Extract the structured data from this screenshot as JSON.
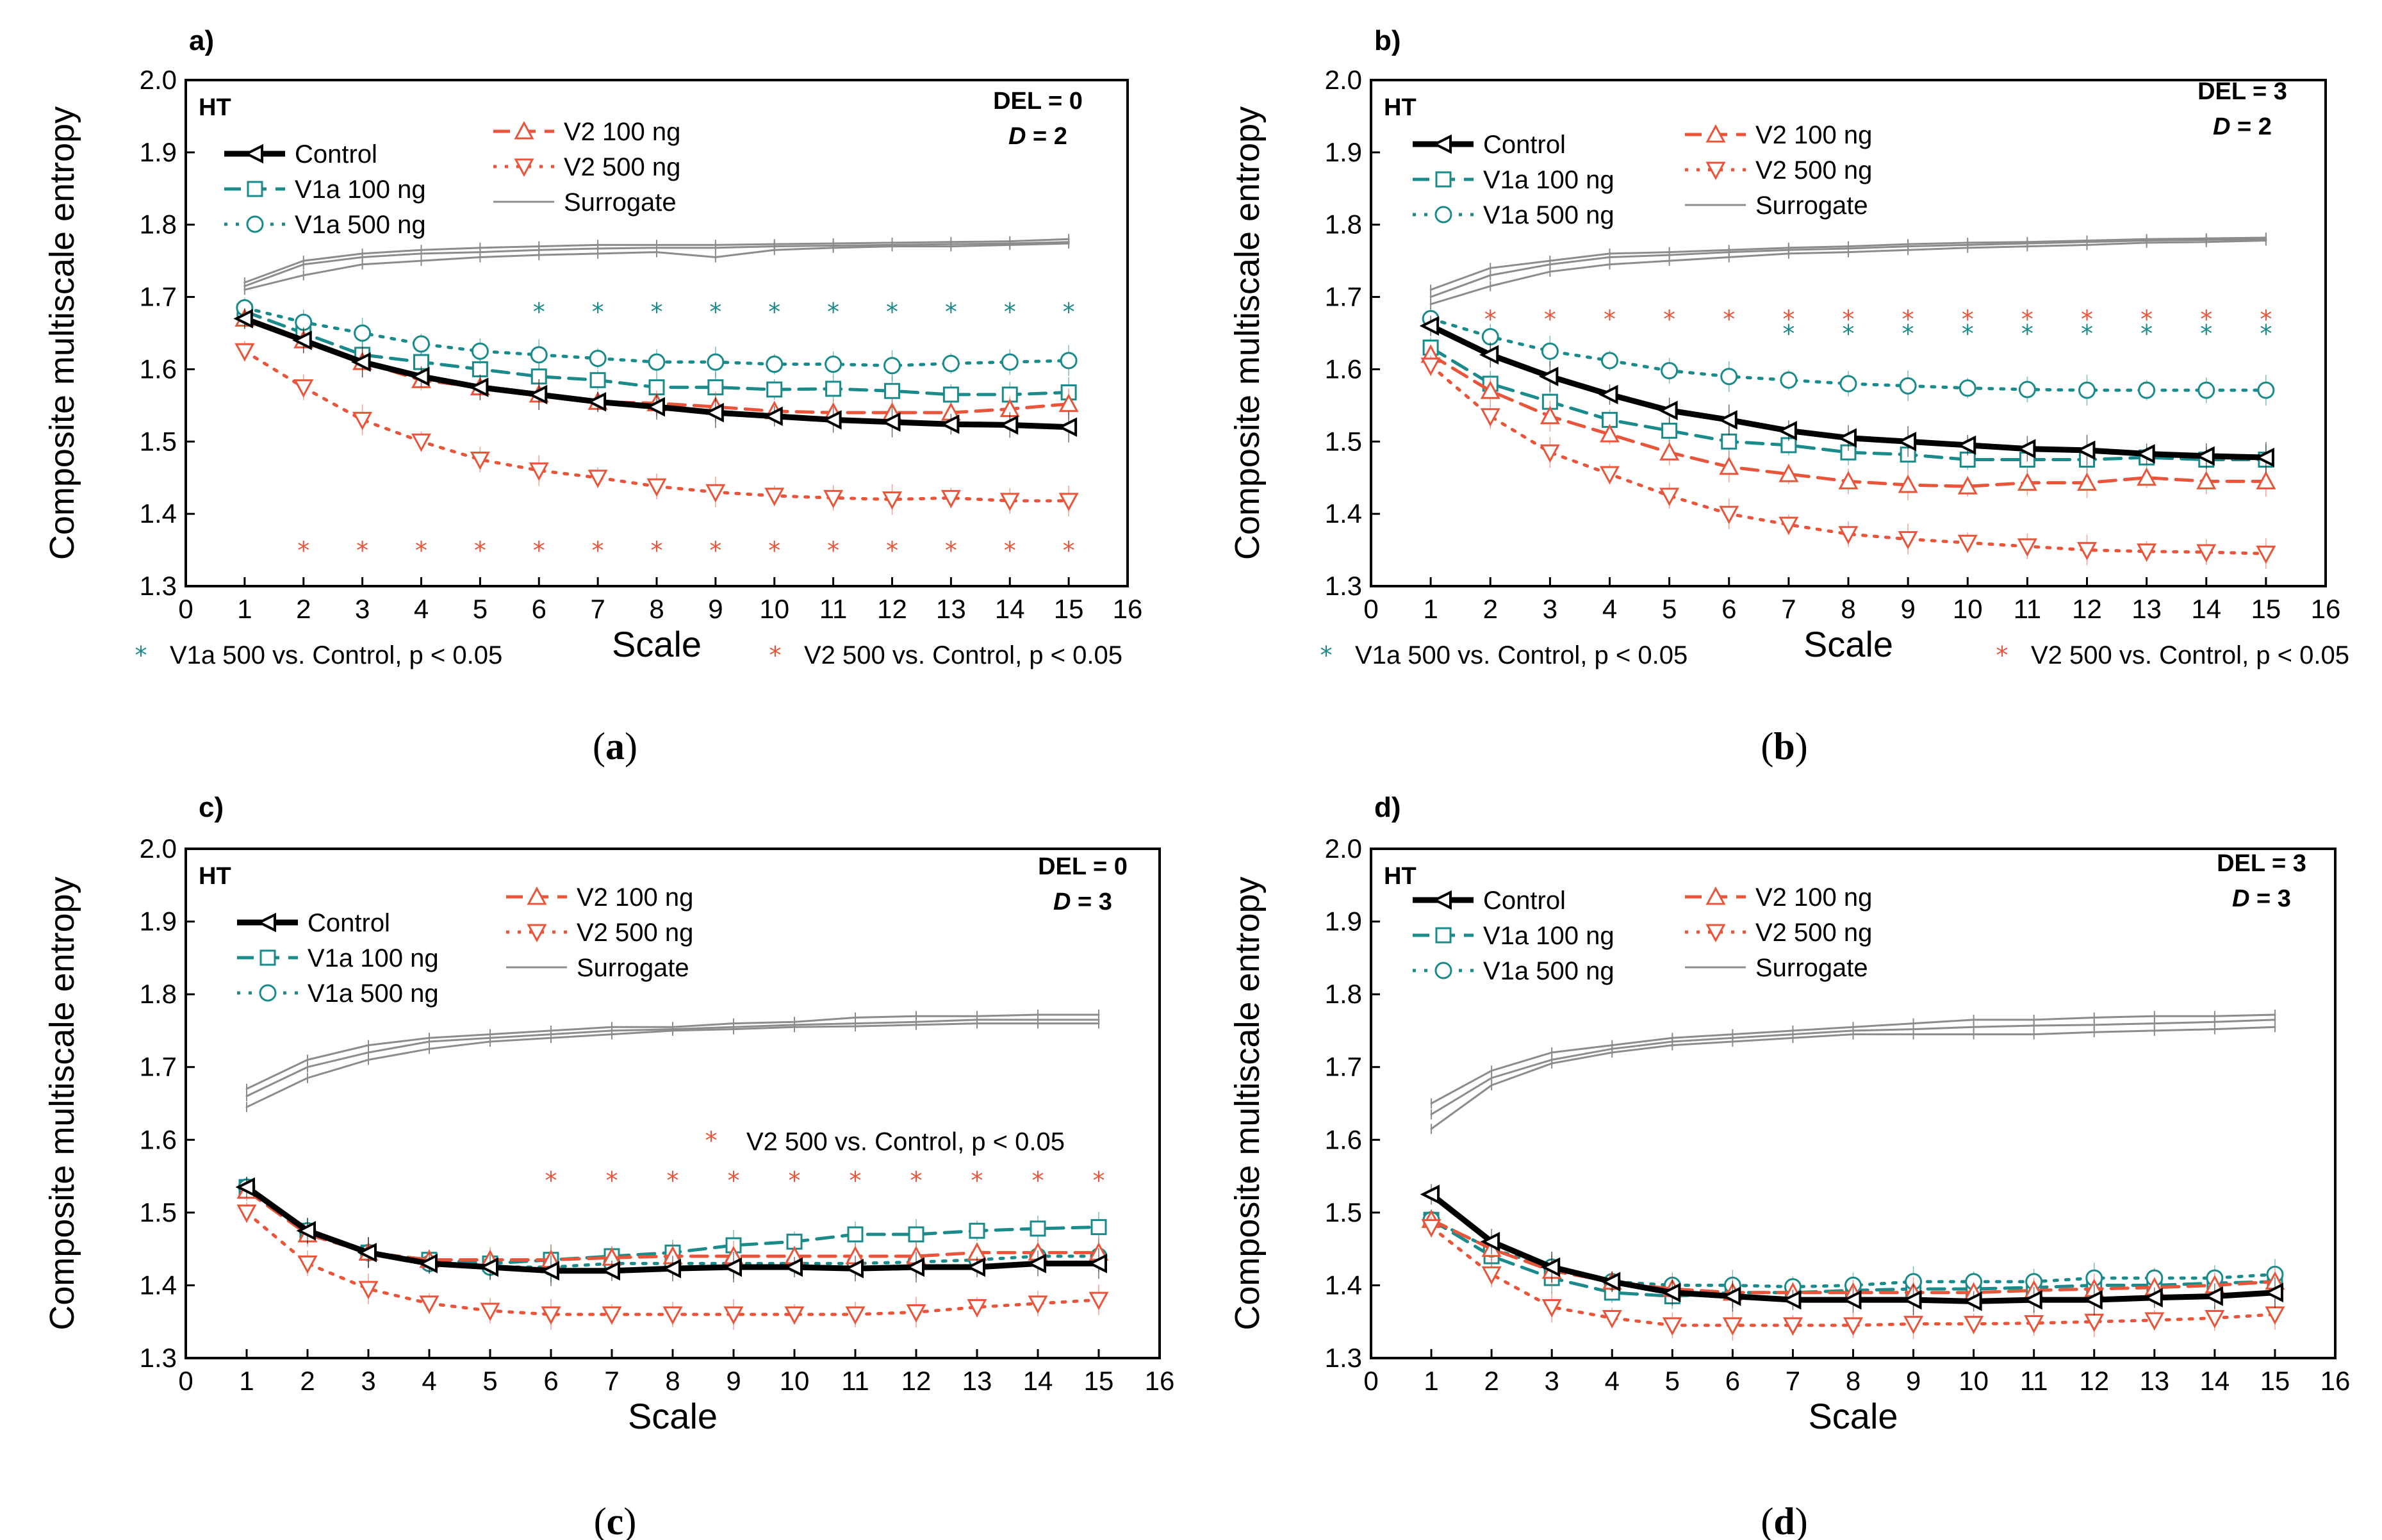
{
  "figure": {
    "captions": [
      "(a)",
      "(b)",
      "(c)",
      "(d)"
    ]
  },
  "colors": {
    "control": "#000000",
    "v1a": "#1a8a8a",
    "v2": "#e8553a",
    "surrogate": "#8c8c8c"
  },
  "chart_data": [
    {
      "type": "line",
      "panel_label": "a)",
      "caption": "(a)",
      "tissue": "HT",
      "params": [
        "DEL = 0",
        "D = 2"
      ],
      "xlabel": "Scale",
      "ylabel": "Composite multiscale entropy",
      "xlim": [
        0,
        16
      ],
      "ylim": [
        1.3,
        2.0
      ],
      "xticks": [
        0,
        1,
        2,
        3,
        4,
        5,
        6,
        7,
        8,
        9,
        10,
        11,
        12,
        13,
        14,
        15,
        16
      ],
      "yticks": [
        1.3,
        1.4,
        1.5,
        1.6,
        1.7,
        1.8,
        1.9,
        2.0
      ],
      "x": [
        1,
        2,
        3,
        4,
        5,
        6,
        7,
        8,
        9,
        10,
        11,
        12,
        13,
        14,
        15
      ],
      "legend": [
        "Control",
        "V1a 100 ng",
        "V1a 500 ng",
        "V2 100 ng",
        "V2 500 ng",
        "Surrogate"
      ],
      "series": [
        {
          "name": "Control",
          "values": [
            1.67,
            1.64,
            1.61,
            1.59,
            1.575,
            1.565,
            1.555,
            1.548,
            1.54,
            1.535,
            1.53,
            1.527,
            1.524,
            1.523,
            1.52
          ]
        },
        {
          "name": "V1a 100 ng",
          "values": [
            1.68,
            1.65,
            1.62,
            1.61,
            1.6,
            1.59,
            1.585,
            1.575,
            1.575,
            1.572,
            1.573,
            1.57,
            1.565,
            1.565,
            1.568
          ]
        },
        {
          "name": "V1a 500 ng",
          "values": [
            1.685,
            1.665,
            1.65,
            1.635,
            1.625,
            1.62,
            1.615,
            1.61,
            1.61,
            1.607,
            1.607,
            1.605,
            1.608,
            1.61,
            1.612
          ]
        },
        {
          "name": "V2 100 ng",
          "values": [
            1.67,
            1.64,
            1.61,
            1.585,
            1.575,
            1.565,
            1.555,
            1.553,
            1.548,
            1.542,
            1.54,
            1.54,
            1.54,
            1.545,
            1.552
          ]
        },
        {
          "name": "V2 500 ng",
          "values": [
            1.625,
            1.575,
            1.53,
            1.5,
            1.475,
            1.46,
            1.45,
            1.438,
            1.43,
            1.425,
            1.422,
            1.42,
            1.422,
            1.418,
            1.418
          ]
        },
        {
          "name": "Surrogate 1",
          "values": [
            1.72,
            1.75,
            1.76,
            1.765,
            1.768,
            1.77,
            1.772,
            1.772,
            1.772,
            1.773,
            1.774,
            1.775,
            1.776,
            1.777,
            1.78
          ]
        },
        {
          "name": "Surrogate 2",
          "values": [
            1.715,
            1.745,
            1.755,
            1.76,
            1.762,
            1.765,
            1.767,
            1.768,
            1.768,
            1.77,
            1.771,
            1.772,
            1.773,
            1.774,
            1.776
          ]
        },
        {
          "name": "Surrogate 3",
          "values": [
            1.71,
            1.73,
            1.745,
            1.75,
            1.755,
            1.758,
            1.76,
            1.762,
            1.755,
            1.765,
            1.768,
            1.77,
            1.77,
            1.772,
            1.774
          ]
        }
      ],
      "markers": [
        {
          "group": "V1a",
          "y": 1.68,
          "x": [
            6,
            7,
            8,
            9,
            10,
            11,
            12,
            13,
            14,
            15
          ]
        },
        {
          "group": "V2",
          "y": 1.35,
          "x": [
            2,
            3,
            4,
            5,
            6,
            7,
            8,
            9,
            10,
            11,
            12,
            13,
            14,
            15
          ]
        }
      ],
      "notes": [
        "V1a 500 vs. Control, p < 0.05",
        "V2 500 vs. Control, p < 0.05"
      ]
    },
    {
      "type": "line",
      "panel_label": "b)",
      "caption": "(b)",
      "tissue": "HT",
      "params": [
        "DEL = 3",
        "D = 2"
      ],
      "xlabel": "Scale",
      "ylabel": "Composite multiscale entropy",
      "xlim": [
        0,
        16
      ],
      "ylim": [
        1.3,
        2.0
      ],
      "xticks": [
        0,
        1,
        2,
        3,
        4,
        5,
        6,
        7,
        8,
        9,
        10,
        11,
        12,
        13,
        14,
        15,
        16
      ],
      "yticks": [
        1.3,
        1.4,
        1.5,
        1.6,
        1.7,
        1.8,
        1.9,
        2.0
      ],
      "x": [
        1,
        2,
        3,
        4,
        5,
        6,
        7,
        8,
        9,
        10,
        11,
        12,
        13,
        14,
        15
      ],
      "legend": [
        "Control",
        "V1a 100 ng",
        "V1a 500 ng",
        "V2 100 ng",
        "V2 500 ng",
        "Surrogate"
      ],
      "series": [
        {
          "name": "Control",
          "values": [
            1.66,
            1.62,
            1.59,
            1.565,
            1.543,
            1.53,
            1.515,
            1.505,
            1.5,
            1.495,
            1.49,
            1.488,
            1.483,
            1.48,
            1.478
          ]
        },
        {
          "name": "V1a 100 ng",
          "values": [
            1.63,
            1.58,
            1.555,
            1.53,
            1.515,
            1.5,
            1.495,
            1.485,
            1.482,
            1.475,
            1.475,
            1.475,
            1.478,
            1.475,
            1.475
          ]
        },
        {
          "name": "V1a 500 ng",
          "values": [
            1.67,
            1.645,
            1.625,
            1.612,
            1.598,
            1.59,
            1.585,
            1.58,
            1.577,
            1.574,
            1.572,
            1.571,
            1.571,
            1.571,
            1.571
          ]
        },
        {
          "name": "V2 100 ng",
          "values": [
            1.62,
            1.57,
            1.535,
            1.51,
            1.485,
            1.465,
            1.455,
            1.445,
            1.44,
            1.438,
            1.443,
            1.443,
            1.45,
            1.445,
            1.445
          ]
        },
        {
          "name": "V2 500 ng",
          "values": [
            1.605,
            1.535,
            1.485,
            1.455,
            1.425,
            1.4,
            1.385,
            1.372,
            1.365,
            1.36,
            1.355,
            1.35,
            1.348,
            1.347,
            1.345
          ]
        },
        {
          "name": "Surrogate 1",
          "values": [
            1.71,
            1.74,
            1.75,
            1.76,
            1.762,
            1.765,
            1.768,
            1.77,
            1.773,
            1.775,
            1.776,
            1.778,
            1.78,
            1.781,
            1.782
          ]
        },
        {
          "name": "Surrogate 2",
          "values": [
            1.7,
            1.73,
            1.745,
            1.755,
            1.758,
            1.762,
            1.765,
            1.767,
            1.77,
            1.772,
            1.774,
            1.776,
            1.778,
            1.779,
            1.78
          ]
        },
        {
          "name": "Surrogate 3",
          "values": [
            1.69,
            1.715,
            1.735,
            1.745,
            1.75,
            1.755,
            1.76,
            1.762,
            1.765,
            1.768,
            1.77,
            1.772,
            1.775,
            1.776,
            1.778
          ]
        }
      ],
      "markers": [
        {
          "group": "V2",
          "y": 1.67,
          "x": [
            2,
            3,
            4,
            5,
            6,
            7,
            8,
            9,
            10,
            11,
            12,
            13,
            14,
            15
          ]
        },
        {
          "group": "V1a",
          "y": 1.65,
          "x": [
            7,
            8,
            9,
            10,
            11,
            12,
            13,
            14,
            15
          ]
        }
      ],
      "notes": [
        "V1a 500 vs. Control, p < 0.05",
        "V2 500 vs. Control, p < 0.05"
      ]
    },
    {
      "type": "line",
      "panel_label": "c)",
      "caption": "(c)",
      "tissue": "HT",
      "params": [
        "DEL = 0",
        "D = 3"
      ],
      "xlabel": "Scale",
      "ylabel": "Composite multiscale entropy",
      "xlim": [
        0,
        16
      ],
      "ylim": [
        1.3,
        2.0
      ],
      "xticks": [
        0,
        1,
        2,
        3,
        4,
        5,
        6,
        7,
        8,
        9,
        10,
        11,
        12,
        13,
        14,
        15,
        16
      ],
      "yticks": [
        1.3,
        1.4,
        1.5,
        1.6,
        1.7,
        1.8,
        1.9,
        2.0
      ],
      "x": [
        1,
        2,
        3,
        4,
        5,
        6,
        7,
        8,
        9,
        10,
        11,
        12,
        13,
        14,
        15
      ],
      "legend": [
        "Control",
        "V1a 100 ng",
        "V1a 500 ng",
        "V2 100 ng",
        "V2 500 ng",
        "Surrogate"
      ],
      "series": [
        {
          "name": "Control",
          "values": [
            1.535,
            1.475,
            1.445,
            1.43,
            1.425,
            1.42,
            1.42,
            1.423,
            1.425,
            1.425,
            1.423,
            1.425,
            1.425,
            1.43,
            1.43
          ]
        },
        {
          "name": "V1a 100 ng",
          "values": [
            1.535,
            1.475,
            1.445,
            1.435,
            1.43,
            1.435,
            1.44,
            1.445,
            1.455,
            1.46,
            1.47,
            1.47,
            1.475,
            1.478,
            1.48
          ]
        },
        {
          "name": "V1a 500 ng",
          "values": [
            1.535,
            1.475,
            1.445,
            1.43,
            1.425,
            1.425,
            1.43,
            1.43,
            1.43,
            1.43,
            1.43,
            1.432,
            1.435,
            1.44,
            1.44
          ]
        },
        {
          "name": "V2 100 ng",
          "values": [
            1.53,
            1.47,
            1.445,
            1.435,
            1.435,
            1.435,
            1.438,
            1.44,
            1.44,
            1.44,
            1.44,
            1.44,
            1.445,
            1.445,
            1.445
          ]
        },
        {
          "name": "V2 500 ng",
          "values": [
            1.5,
            1.43,
            1.395,
            1.375,
            1.365,
            1.36,
            1.36,
            1.36,
            1.36,
            1.36,
            1.36,
            1.363,
            1.37,
            1.375,
            1.38
          ]
        },
        {
          "name": "Surrogate 1",
          "values": [
            1.67,
            1.71,
            1.73,
            1.74,
            1.745,
            1.75,
            1.755,
            1.755,
            1.76,
            1.762,
            1.768,
            1.77,
            1.77,
            1.772,
            1.772
          ]
        },
        {
          "name": "Surrogate 2",
          "values": [
            1.66,
            1.7,
            1.72,
            1.735,
            1.74,
            1.745,
            1.75,
            1.752,
            1.755,
            1.758,
            1.76,
            1.762,
            1.765,
            1.765,
            1.765
          ]
        },
        {
          "name": "Surrogate 3",
          "values": [
            1.645,
            1.685,
            1.71,
            1.725,
            1.735,
            1.74,
            1.745,
            1.75,
            1.752,
            1.755,
            1.756,
            1.758,
            1.76,
            1.76,
            1.76
          ]
        }
      ],
      "markers": [
        {
          "group": "V2",
          "y": 1.545,
          "x": [
            6,
            7,
            8,
            9,
            10,
            11,
            12,
            13,
            14,
            15
          ]
        }
      ],
      "notes": [
        "V2 500 vs. Control, p < 0.05"
      ]
    },
    {
      "type": "line",
      "panel_label": "d)",
      "caption": "(d)",
      "tissue": "HT",
      "params": [
        "DEL = 3",
        "D = 3"
      ],
      "xlabel": "Scale",
      "ylabel": "Composite multiscale entropy",
      "xlim": [
        0,
        16
      ],
      "ylim": [
        1.3,
        2.0
      ],
      "xticks": [
        0,
        1,
        2,
        3,
        4,
        5,
        6,
        7,
        8,
        9,
        10,
        11,
        12,
        13,
        14,
        15,
        16
      ],
      "yticks": [
        1.3,
        1.4,
        1.5,
        1.6,
        1.7,
        1.8,
        1.9,
        2.0
      ],
      "x": [
        1,
        2,
        3,
        4,
        5,
        6,
        7,
        8,
        9,
        10,
        11,
        12,
        13,
        14,
        15
      ],
      "legend": [
        "Control",
        "V1a 100 ng",
        "V1a 500 ng",
        "V2 100 ng",
        "V2 500 ng",
        "Surrogate"
      ],
      "series": [
        {
          "name": "Control",
          "values": [
            1.525,
            1.46,
            1.425,
            1.405,
            1.39,
            1.385,
            1.38,
            1.38,
            1.38,
            1.378,
            1.38,
            1.38,
            1.383,
            1.385,
            1.39
          ]
        },
        {
          "name": "V1a 100 ng",
          "values": [
            1.49,
            1.44,
            1.41,
            1.39,
            1.385,
            1.39,
            1.39,
            1.393,
            1.395,
            1.395,
            1.397,
            1.4,
            1.4,
            1.403,
            1.405
          ]
        },
        {
          "name": "V1a 500 ng",
          "values": [
            1.49,
            1.45,
            1.425,
            1.405,
            1.4,
            1.4,
            1.398,
            1.4,
            1.405,
            1.405,
            1.405,
            1.41,
            1.41,
            1.41,
            1.415
          ]
        },
        {
          "name": "V2 100 ng",
          "values": [
            1.49,
            1.45,
            1.42,
            1.405,
            1.395,
            1.39,
            1.39,
            1.39,
            1.39,
            1.39,
            1.393,
            1.395,
            1.397,
            1.4,
            1.405
          ]
        },
        {
          "name": "V2 500 ng",
          "values": [
            1.48,
            1.415,
            1.37,
            1.355,
            1.345,
            1.345,
            1.345,
            1.345,
            1.347,
            1.347,
            1.348,
            1.35,
            1.352,
            1.355,
            1.36
          ]
        },
        {
          "name": "Surrogate 1",
          "values": [
            1.65,
            1.695,
            1.72,
            1.73,
            1.74,
            1.745,
            1.75,
            1.755,
            1.76,
            1.765,
            1.765,
            1.768,
            1.77,
            1.77,
            1.772
          ]
        },
        {
          "name": "Surrogate 2",
          "values": [
            1.635,
            1.685,
            1.71,
            1.725,
            1.735,
            1.74,
            1.745,
            1.75,
            1.752,
            1.755,
            1.757,
            1.758,
            1.76,
            1.762,
            1.765
          ]
        },
        {
          "name": "Surrogate 3",
          "values": [
            1.615,
            1.675,
            1.705,
            1.72,
            1.73,
            1.735,
            1.74,
            1.745,
            1.745,
            1.745,
            1.745,
            1.748,
            1.75,
            1.752,
            1.755
          ]
        }
      ],
      "markers": [],
      "notes": []
    }
  ]
}
